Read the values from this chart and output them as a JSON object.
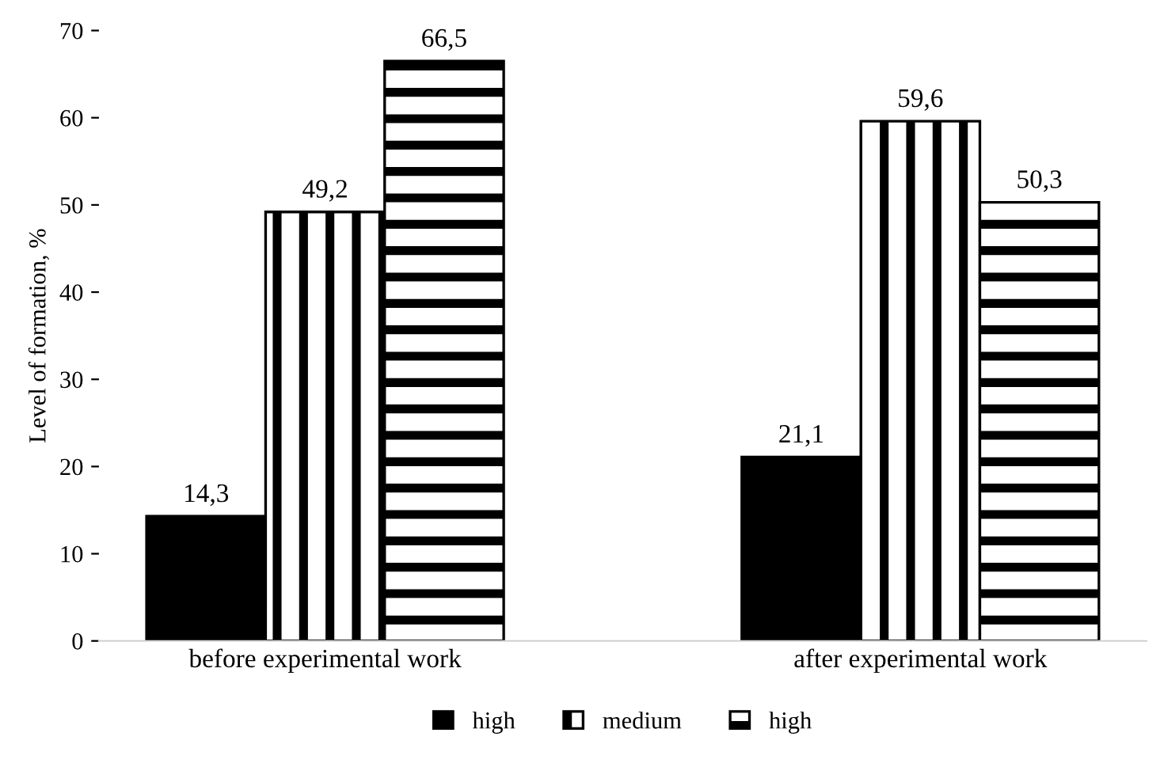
{
  "chart_data": {
    "type": "bar",
    "ylabel": "Level of formation, %",
    "categories": [
      "before experimental work",
      "after experimental work"
    ],
    "series": [
      {
        "name": "high",
        "color": "#000000",
        "values": [
          14.3,
          21.1
        ],
        "value_labels": [
          "14,3",
          "21,1"
        ]
      },
      {
        "name": "medium",
        "color": "#000000",
        "values": [
          49.2,
          59.6
        ],
        "value_labels": [
          "49,2",
          "59,6"
        ]
      },
      {
        "name": "high",
        "color": "#000000",
        "values": [
          66.5,
          50.3
        ],
        "value_labels": [
          "66,5",
          "50,3"
        ]
      }
    ],
    "ylim": [
      0,
      70
    ],
    "yticks": [
      0,
      10,
      20,
      30,
      40,
      50,
      60,
      70
    ],
    "grid": false,
    "legend": "bottom"
  }
}
